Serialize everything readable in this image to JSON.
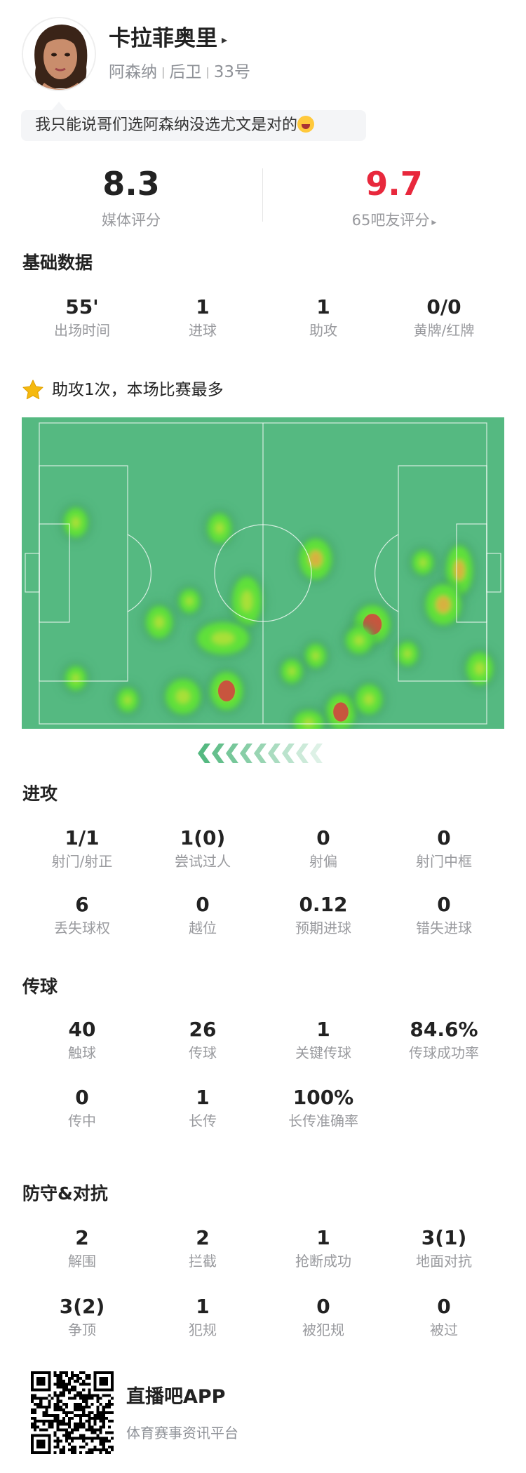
{
  "player": {
    "name": "卡拉菲奥里",
    "name_arrow": "▸",
    "team": "阿森纳",
    "position": "后卫",
    "number": "33号",
    "separator": "|",
    "comment": "我只能说哥们选阿森纳没选尤文是对的",
    "comment_emoji": "laughing-tears-emoji"
  },
  "ratings": {
    "media": {
      "value": "8.3",
      "label": "媒体评分",
      "color": "#222222"
    },
    "fans": {
      "value": "9.7",
      "label": "65吧友评分",
      "arrow": "▸",
      "color": "#e8283c"
    }
  },
  "basic": {
    "title": "基础数据",
    "stats": [
      {
        "value": "55'",
        "label": "出场时间"
      },
      {
        "value": "1",
        "label": "进球"
      },
      {
        "value": "1",
        "label": "助攻"
      },
      {
        "value": "0/0",
        "label": "黄牌/红牌"
      }
    ]
  },
  "highlight": {
    "icon": "star-icon",
    "text": "助攻1次，本场比赛最多",
    "icon_color": "#f5b90f"
  },
  "heatmap": {
    "pitch_color": "#55b981",
    "direction": "attacking-left"
  },
  "attack": {
    "title": "进攻",
    "rows": [
      [
        {
          "value": "1/1",
          "label": "射门/射正"
        },
        {
          "value": "1(0)",
          "label": "尝试过人"
        },
        {
          "value": "0",
          "label": "射偏"
        },
        {
          "value": "0",
          "label": "射门中框"
        }
      ],
      [
        {
          "value": "6",
          "label": "丢失球权"
        },
        {
          "value": "0",
          "label": "越位"
        },
        {
          "value": "0.12",
          "label": "预期进球"
        },
        {
          "value": "0",
          "label": "错失进球"
        }
      ]
    ]
  },
  "passing": {
    "title": "传球",
    "rows": [
      [
        {
          "value": "40",
          "label": "触球"
        },
        {
          "value": "26",
          "label": "传球"
        },
        {
          "value": "1",
          "label": "关键传球"
        },
        {
          "value": "84.6%",
          "label": "传球成功率"
        }
      ],
      [
        {
          "value": "0",
          "label": "传中"
        },
        {
          "value": "1",
          "label": "长传"
        },
        {
          "value": "100%",
          "label": "长传准确率"
        }
      ]
    ]
  },
  "defense": {
    "title": "防守&对抗",
    "rows": [
      [
        {
          "value": "2",
          "label": "解围"
        },
        {
          "value": "2",
          "label": "拦截"
        },
        {
          "value": "1",
          "label": "抢断成功"
        },
        {
          "value": "3(1)",
          "label": "地面对抗"
        }
      ],
      [
        {
          "value": "3(2)",
          "label": "争顶"
        },
        {
          "value": "1",
          "label": "犯规"
        },
        {
          "value": "0",
          "label": "被犯规"
        },
        {
          "value": "0",
          "label": "被过"
        }
      ]
    ]
  },
  "footer": {
    "app_name": "直播吧APP",
    "tagline": "体育赛事资讯平台"
  }
}
